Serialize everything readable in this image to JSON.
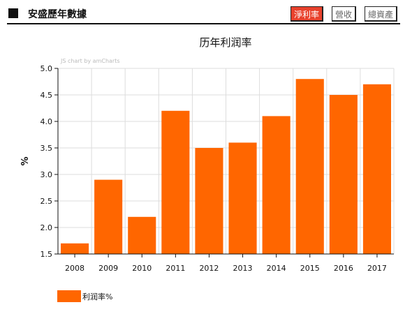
{
  "header": {
    "title": "安盛歷年數據",
    "tabs": [
      {
        "label": "淨利率",
        "active": true
      },
      {
        "label": "營收",
        "active": false
      },
      {
        "label": "總資產",
        "active": false
      }
    ]
  },
  "watermark": "JS chart by amCharts",
  "colors": {
    "bar": "#ff6600",
    "active_tab": "#e8412c"
  },
  "chart_data": {
    "type": "bar",
    "title": "历年利润率",
    "xlabel": "",
    "ylabel": "%",
    "categories": [
      "2008",
      "2009",
      "2010",
      "2011",
      "2012",
      "2013",
      "2014",
      "2015",
      "2016",
      "2017"
    ],
    "values": [
      1.7,
      2.9,
      2.2,
      4.2,
      3.5,
      3.6,
      4.1,
      4.8,
      4.5,
      4.7
    ],
    "ylim": [
      1.5,
      5.0
    ],
    "yticks": [
      "1.5",
      "2.0",
      "2.5",
      "3.0",
      "3.5",
      "4.0",
      "4.5",
      "5.0"
    ],
    "grid": true,
    "legend": {
      "position": "bottom-left",
      "entries": [
        "利润率%"
      ]
    }
  }
}
